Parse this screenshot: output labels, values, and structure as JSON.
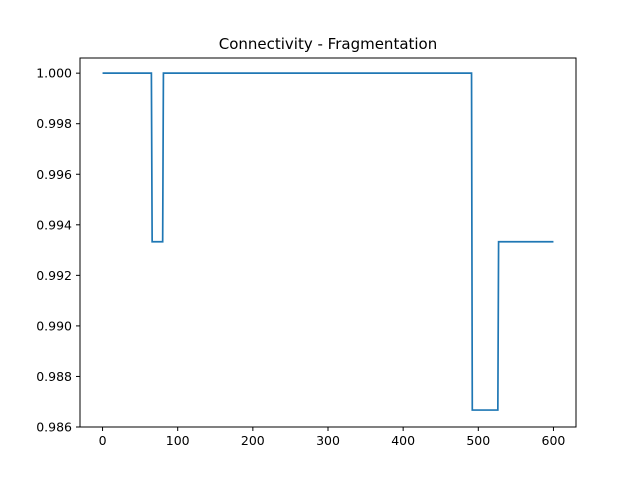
{
  "chart_data": {
    "type": "line",
    "title": "Connectivity - Fragmentation",
    "xlabel": "",
    "ylabel": "",
    "xlim": [
      -30,
      630
    ],
    "ylim": [
      0.986,
      1.0006
    ],
    "x_ticks": [
      0,
      100,
      200,
      300,
      400,
      500,
      600
    ],
    "x_tick_labels": [
      "0",
      "100",
      "200",
      "300",
      "400",
      "500",
      "600"
    ],
    "y_ticks": [
      0.986,
      0.988,
      0.99,
      0.992,
      0.994,
      0.996,
      0.998,
      1.0
    ],
    "y_tick_labels": [
      "0.986",
      "0.988",
      "0.990",
      "0.992",
      "0.994",
      "0.996",
      "0.998",
      "1.000"
    ],
    "grid": false,
    "line_color": "#1f77b4",
    "series": [
      {
        "x": [
          0,
          65,
          66,
          80,
          81,
          491,
          492,
          526,
          527,
          600
        ],
        "y": [
          1.0,
          1.0,
          0.99333,
          0.99333,
          1.0,
          1.0,
          0.98667,
          0.98667,
          0.99333,
          0.99333
        ]
      }
    ]
  }
}
